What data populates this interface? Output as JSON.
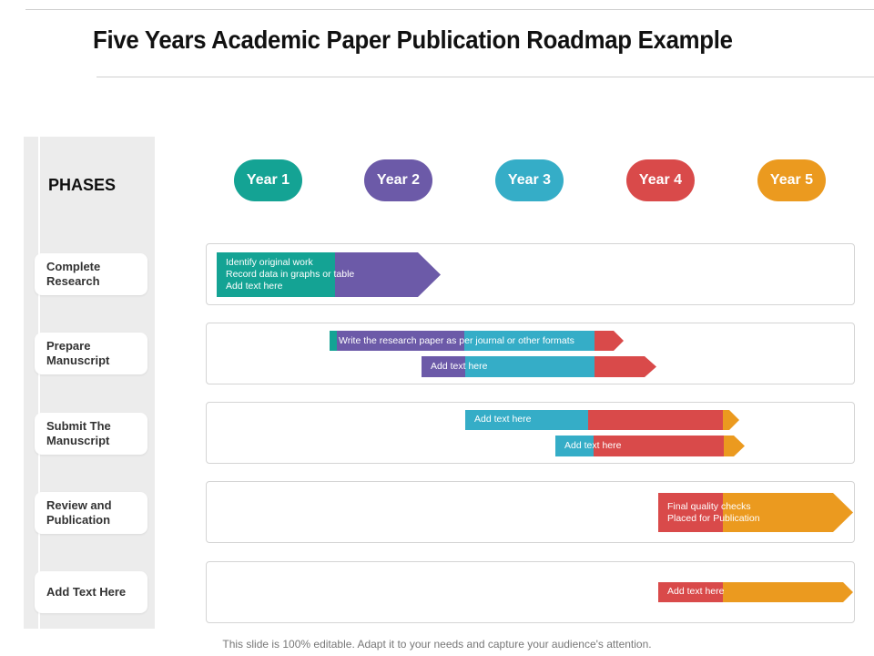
{
  "title": "Five Years Academic Paper Publication Roadmap Example",
  "phases_label": "PHASES",
  "footer": "This slide is 100% editable. Adapt it to your needs and capture your audience's attention.",
  "colors": {
    "teal": "#14a394",
    "purple": "#6c5aa8",
    "blue": "#35adc7",
    "red": "#d94a4a",
    "orange": "#eb9a1f"
  },
  "years": [
    {
      "label": "Year 1",
      "color": "#14a394"
    },
    {
      "label": "Year 2",
      "color": "#6c5aa8"
    },
    {
      "label": "Year 3",
      "color": "#35adc7"
    },
    {
      "label": "Year 4",
      "color": "#d94a4a"
    },
    {
      "label": "Year 5",
      "color": "#eb9a1f"
    }
  ],
  "phases": [
    {
      "line1": "Complete",
      "line2": "Research"
    },
    {
      "line1": "Prepare",
      "line2": "Manuscript"
    },
    {
      "line1": "Submit The",
      "line2": "Manuscript"
    },
    {
      "line1": "Review and",
      "line2": "Publication"
    },
    {
      "line1": "Add Text Here",
      "line2": ""
    }
  ],
  "bars": [
    {
      "row": 0,
      "lines": [
        "Identify original work",
        "Record data in  graphs or table",
        "Add text here"
      ]
    },
    {
      "row": 1,
      "lines": [
        "Write the research paper as per journal or other  formats"
      ]
    },
    {
      "row": 1,
      "lines": [
        "Add text here"
      ]
    },
    {
      "row": 2,
      "lines": [
        "Add text here"
      ]
    },
    {
      "row": 2,
      "lines": [
        "Add text here"
      ]
    },
    {
      "row": 3,
      "lines": [
        "Final quality checks",
        "Placed  for Publication"
      ]
    },
    {
      "row": 4,
      "lines": [
        "Add text here"
      ]
    }
  ]
}
